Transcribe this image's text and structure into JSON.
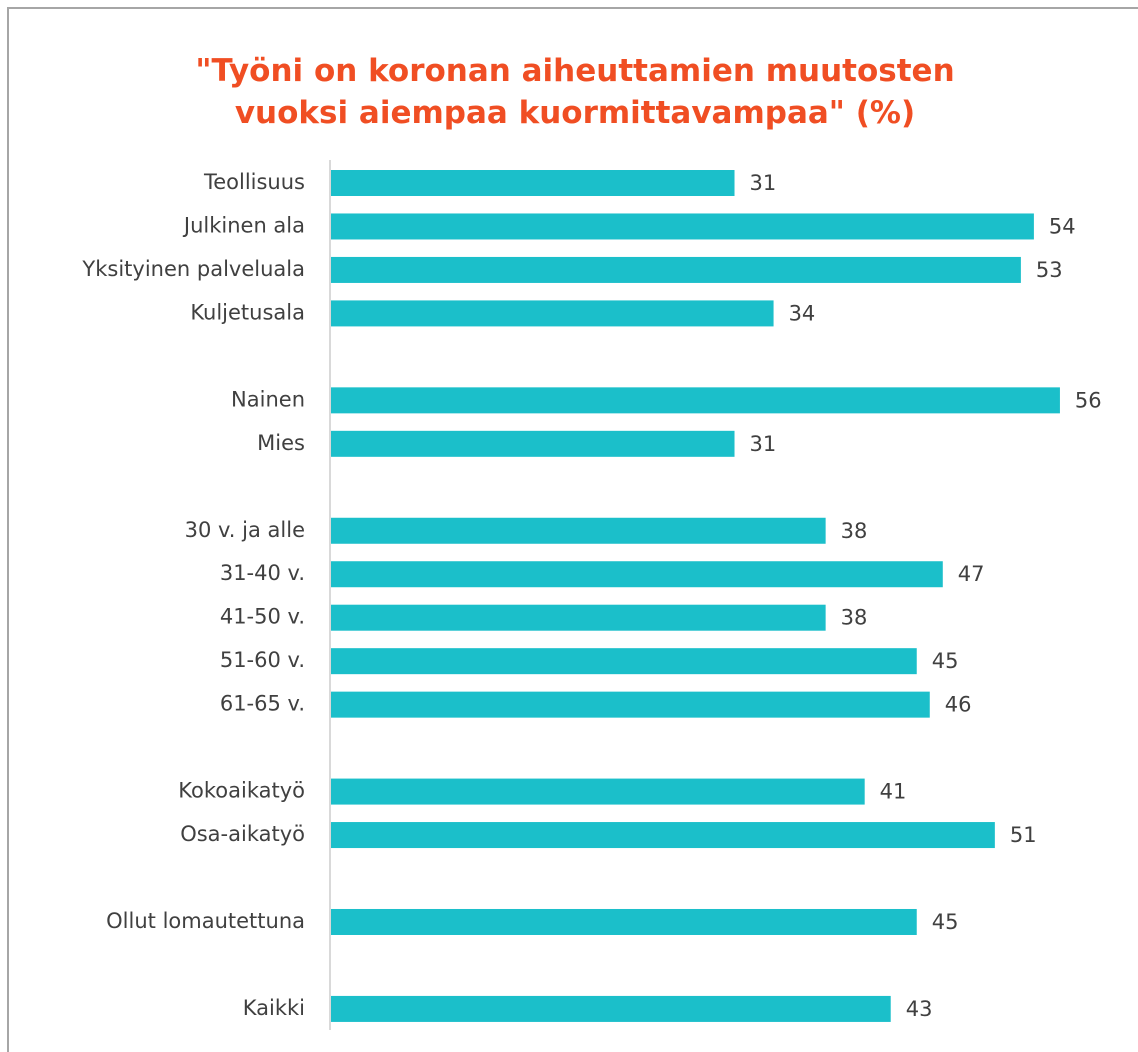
{
  "chart_data": {
    "type": "bar",
    "orientation": "horizontal",
    "title": "\"Työni on koronan aiheuttamien muutosten vuoksi aiempaa kuormittavampaa\" (%)",
    "categories": [
      "Teollisuus",
      "Julkinen ala",
      "Yksityinen palveluala",
      "Kuljetusala",
      null,
      "Nainen",
      "Mies",
      null,
      "30 v. ja alle",
      "31-40 v.",
      "41-50 v.",
      "51-60 v.",
      "61-65 v.",
      null,
      "Kokoaikatyö",
      "Osa-aikatyö",
      null,
      "Ollut lomautettuna",
      null,
      "Kaikki"
    ],
    "values": [
      31,
      54,
      53,
      34,
      null,
      56,
      31,
      null,
      38,
      47,
      38,
      45,
      46,
      null,
      41,
      51,
      null,
      45,
      null,
      43
    ],
    "color": "#1bbfca",
    "xlim": [
      0,
      60
    ]
  }
}
